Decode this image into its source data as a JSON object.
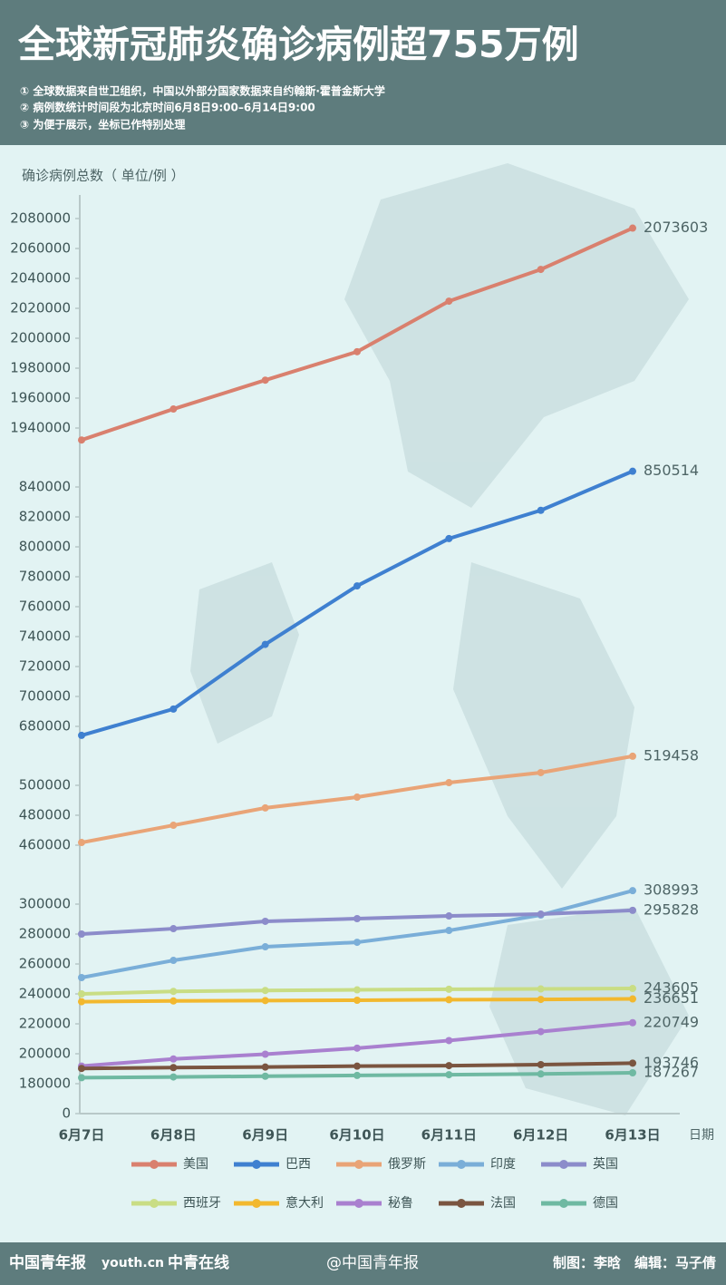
{
  "chart_data": {
    "type": "line",
    "title": "全球新冠肺炎确诊病例超755万例",
    "notes": [
      "① 全球数据来自世卫组织，中国以外部分国家数据来自约翰斯·霍普金斯大学",
      "② 病例数统计时间段为北京时间6月8日9:00–6月14日9:00",
      "③ 为便于展示，坐标已作特别处理"
    ],
    "y_label": "确诊病例总数（ 单位/例 ）",
    "x_label": "日期",
    "categories": [
      "6月7日",
      "6月8日",
      "6月9日",
      "6月10日",
      "6月11日",
      "6月12日",
      "6月13日"
    ],
    "y_segments": [
      [
        0,
        0
      ],
      [
        180000,
        300000
      ],
      [
        460000,
        500000
      ],
      [
        680000,
        840000
      ],
      [
        1940000,
        2080000
      ]
    ],
    "yticks": [
      0,
      180000,
      200000,
      220000,
      240000,
      260000,
      280000,
      300000,
      460000,
      480000,
      500000,
      680000,
      700000,
      720000,
      740000,
      760000,
      780000,
      800000,
      820000,
      840000,
      1940000,
      1960000,
      1980000,
      2000000,
      2020000,
      2040000,
      2060000,
      2080000
    ],
    "grid": false,
    "series": [
      {
        "name": "美国",
        "color": "#d9806e",
        "values": [
          1932000,
          1952700,
          1972000,
          1991000,
          2024800,
          2046000,
          2073603
        ]
      },
      {
        "name": "巴西",
        "color": "#3f80d0",
        "values": [
          674000,
          691600,
          734800,
          773900,
          805500,
          824400,
          850514
        ]
      },
      {
        "name": "俄罗斯",
        "color": "#e9a477",
        "values": [
          461800,
          473300,
          484900,
          492100,
          501800,
          508500,
          519458
        ]
      },
      {
        "name": "印度",
        "color": "#7aaed8",
        "values": [
          250900,
          262400,
          271500,
          274500,
          282400,
          292700,
          308993
        ]
      },
      {
        "name": "英国",
        "color": "#8c8cca",
        "values": [
          280000,
          283600,
          288500,
          290300,
          292100,
          293300,
          295828
        ]
      },
      {
        "name": "西班牙",
        "color": "#c9dd84",
        "values": [
          240000,
          241700,
          242300,
          242700,
          243100,
          243300,
          243605
        ]
      },
      {
        "name": "意大利",
        "color": "#f2b82e",
        "values": [
          234801,
          235278,
          235561,
          235763,
          236142,
          236305,
          236651
        ]
      },
      {
        "name": "秘鲁",
        "color": "#a980cf",
        "values": [
          191758,
          196515,
          199696,
          203736,
          208823,
          214788,
          220749
        ]
      },
      {
        "name": "法国",
        "color": "#7a5540",
        "values": [
          190180,
          190759,
          191102,
          191728,
          192068,
          192719,
          193746
        ]
      },
      {
        "name": "德国",
        "color": "#6fb9a2",
        "values": [
          184000,
          184500,
          185000,
          185500,
          186000,
          186500,
          187267
        ]
      }
    ]
  },
  "footer": {
    "logos": [
      "中国青年报",
      "youth.cn",
      "中青在线"
    ],
    "weibo": "@中国青年报",
    "credits": "制图：李晗　编辑：马子倩"
  }
}
